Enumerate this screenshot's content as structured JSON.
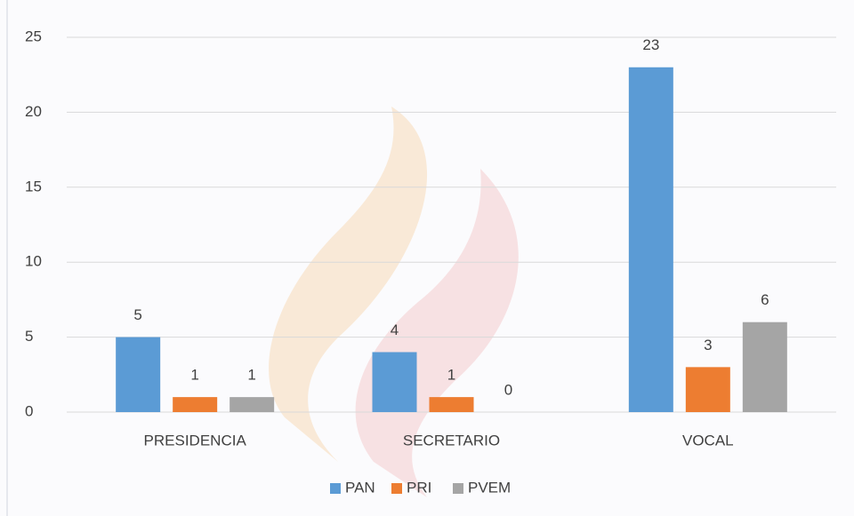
{
  "chart_data": {
    "type": "bar",
    "categories": [
      "PRESIDENCIA",
      "SECRETARIO",
      "VOCAL"
    ],
    "series": [
      {
        "name": "PAN",
        "color": "#5b9bd5",
        "values": [
          5,
          4,
          23
        ]
      },
      {
        "name": "PRI",
        "color": "#ed7d31",
        "values": [
          1,
          1,
          3
        ]
      },
      {
        "name": "PVEM",
        "color": "#a5a5a5",
        "values": [
          1,
          0,
          6
        ]
      }
    ],
    "ylim": [
      0,
      25
    ],
    "yticks": [
      0,
      5,
      10,
      15,
      20,
      25
    ],
    "grid": true,
    "data_labels": true,
    "legend": "bottom"
  }
}
